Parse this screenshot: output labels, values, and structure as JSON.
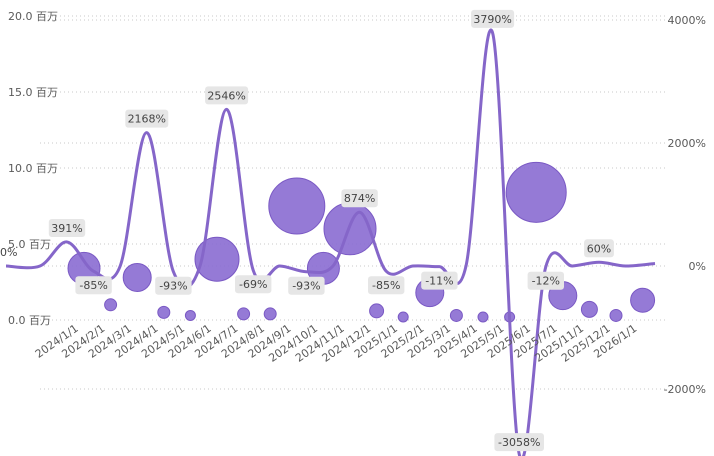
{
  "chart_data": {
    "type": "bubble+line",
    "categories": [
      "2024/1/1",
      "2024/2/1",
      "2024/3/1",
      "2024/4/1",
      "2024/5/1",
      "2024/6/1",
      "2024/7/1",
      "2024/8/1",
      "2024/9/1",
      "2024/10/1",
      "2024/11/1",
      "2024/12/1",
      "2025/1/1",
      "2025/2/1",
      "2025/3/1",
      "2025/4/1",
      "2025/5/1",
      "2025/6/1",
      "2025/7/1",
      "2025/11/1",
      "2025/12/1",
      "2026/1/1"
    ],
    "left_axis": {
      "ylim": [
        0,
        20
      ],
      "ticks": [
        0,
        5,
        10,
        15,
        20
      ],
      "tick_labels": [
        "0.0 百万",
        "5.0 百万",
        "10.0 百万",
        "15.0 百万",
        "20.0 百万"
      ]
    },
    "right_axis": {
      "ylim": [
        -3800,
        4000
      ],
      "ticks": [
        -2000,
        0,
        2000,
        4000
      ],
      "tick_labels": [
        "-2000%",
        "0%",
        "2000%",
        "4000%"
      ]
    },
    "bubbles": {
      "y": [
        3.4,
        1.0,
        2.8,
        0.5,
        0.3,
        4.0,
        0.4,
        0.4,
        7.5,
        3.4,
        6.0,
        0.6,
        0.2,
        1.8,
        0.3,
        0.2,
        0.2,
        8.4,
        1.6,
        0.7,
        0.3,
        1.3
      ],
      "size": [
        16,
        6,
        14,
        6,
        5,
        22,
        6,
        6,
        28,
        16,
        26,
        7,
        5,
        14,
        6,
        5,
        5,
        30,
        14,
        8,
        6,
        12
      ]
    },
    "line": {
      "values": [
        391,
        -85,
        0,
        2168,
        -93,
        0,
        2546,
        -69,
        0,
        -93,
        0,
        874,
        -85,
        0,
        -11,
        0,
        3790,
        -3058,
        -12,
        0,
        60,
        0
      ],
      "labels": [
        "391%",
        "-85%",
        "",
        "2168%",
        "-93%",
        "",
        "2546%",
        "-69%",
        "",
        "-93%",
        "",
        "874%",
        "-85%",
        "",
        "-11%",
        "",
        "3790%",
        "-3058%",
        "-12%",
        "",
        "60%",
        ""
      ]
    },
    "edge_label": "0%",
    "colors": {
      "bubble": "#8a6bd1",
      "line": "#8566c9",
      "grid": "#c8c8c8"
    },
    "grid": true
  }
}
